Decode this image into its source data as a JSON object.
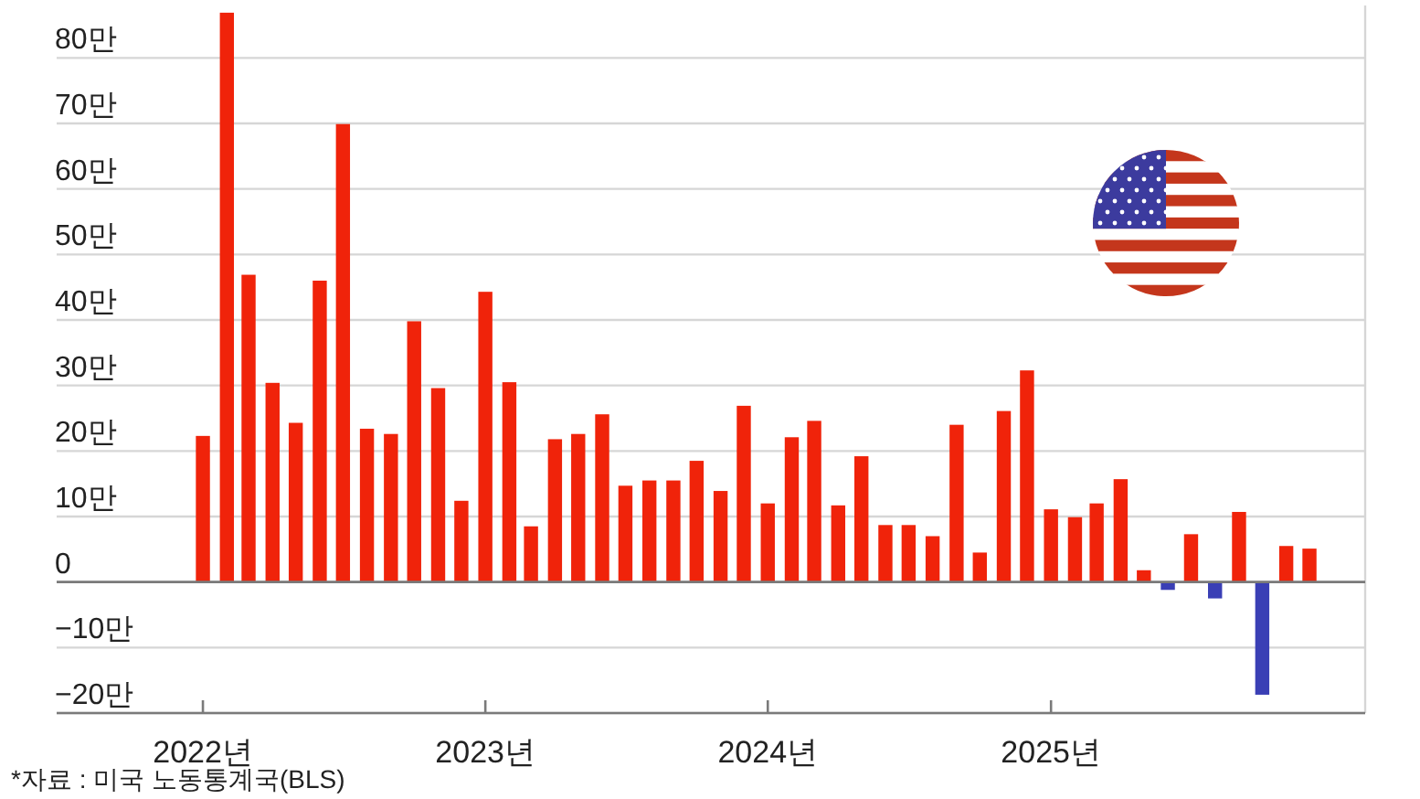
{
  "chart_data": {
    "type": "bar",
    "x": [
      "2022-01",
      "2022-02",
      "2022-03",
      "2022-04",
      "2022-05",
      "2022-06",
      "2022-07",
      "2022-08",
      "2022-09",
      "2022-10",
      "2022-11",
      "2022-12",
      "2023-01",
      "2023-02",
      "2023-03",
      "2023-04",
      "2023-05",
      "2023-06",
      "2023-07",
      "2023-08",
      "2023-09",
      "2023-10",
      "2023-11",
      "2023-12",
      "2024-01",
      "2024-02",
      "2024-03",
      "2024-04",
      "2024-05",
      "2024-06",
      "2024-07",
      "2024-08",
      "2024-09",
      "2024-10",
      "2024-11",
      "2024-12",
      "2025-01",
      "2025-02",
      "2025-03",
      "2025-04",
      "2025-05",
      "2025-06",
      "2025-07",
      "2025-08",
      "2025-09",
      "2025-10",
      "2025-11",
      "2025-12"
    ],
    "values": [
      22.3,
      86.9,
      46.9,
      30.4,
      24.3,
      46.0,
      69.9,
      23.4,
      22.6,
      39.8,
      29.6,
      12.4,
      44.3,
      30.5,
      8.5,
      21.8,
      22.6,
      25.6,
      14.7,
      15.5,
      15.5,
      18.5,
      13.9,
      26.9,
      12.0,
      22.1,
      24.6,
      11.7,
      19.2,
      8.7,
      8.7,
      7.0,
      24.0,
      4.5,
      26.1,
      32.3,
      11.1,
      9.9,
      12.0,
      15.7,
      1.8,
      -1.2,
      7.3,
      -2.5,
      10.7,
      -17.2,
      5.5,
      5.1
    ],
    "colors": [
      "#f0230a",
      "#f0230a",
      "#f0230a",
      "#f0230a",
      "#f0230a",
      "#f0230a",
      "#f0230a",
      "#f0230a",
      "#f0230a",
      "#f0230a",
      "#f0230a",
      "#f0230a",
      "#f0230a",
      "#f0230a",
      "#f0230a",
      "#f0230a",
      "#f0230a",
      "#f0230a",
      "#f0230a",
      "#f0230a",
      "#f0230a",
      "#f0230a",
      "#f0230a",
      "#f0230a",
      "#f0230a",
      "#f0230a",
      "#f0230a",
      "#f0230a",
      "#f0230a",
      "#f0230a",
      "#f0230a",
      "#f0230a",
      "#f0230a",
      "#f0230a",
      "#f0230a",
      "#f0230a",
      "#f0230a",
      "#f0230a",
      "#f0230a",
      "#f0230a",
      "#f0230a",
      "#3a3fb5",
      "#f0230a",
      "#3a3fb5",
      "#f0230a",
      "#3a3fb5",
      "#f0230a",
      "#f0230a"
    ],
    "xlim": [
      "2021-06-26",
      "2026-02-11"
    ],
    "xticks": [
      {
        "value": "2022-01",
        "label": "2022년"
      },
      {
        "value": "2023-01",
        "label": "2023년"
      },
      {
        "value": "2024-01",
        "label": "2024년"
      },
      {
        "value": "2025-01",
        "label": "2025년"
      }
    ],
    "ylim": [
      -20,
      88
    ],
    "yticks": [
      {
        "value": -20,
        "label": "−20만"
      },
      {
        "value": -10,
        "label": "−10만"
      },
      0,
      {
        "value": 10,
        "label": "10만"
      },
      {
        "value": 20,
        "label": "20만"
      },
      {
        "value": 30,
        "label": "30만"
      },
      {
        "value": 40,
        "label": "40만"
      },
      {
        "value": 50,
        "label": "50만"
      },
      {
        "value": 60,
        "label": "60만"
      },
      {
        "value": 70,
        "label": "70만"
      },
      {
        "value": 80,
        "label": "80만"
      }
    ],
    "grid": "y",
    "annotations": [
      "*자료 : 미국 노동통계국(BLS)"
    ]
  }
}
